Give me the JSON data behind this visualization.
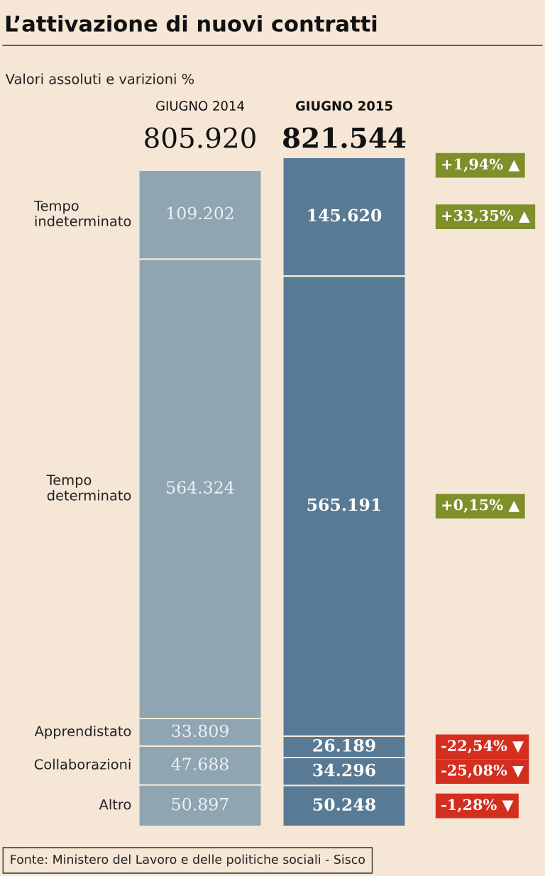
{
  "chart_data": {
    "type": "bar",
    "stacked": true,
    "title": "L’attivazione di nuovi contratti",
    "subtitle": "Valori assoluti e varizioni %",
    "categories": [
      "GIUGNO 2014",
      "GIUGNO 2015"
    ],
    "series": [
      {
        "name": "Altro",
        "colors": [
          "#8fa5b2",
          "#587a94"
        ],
        "values": [
          50897,
          50248
        ],
        "value_labels": [
          "50.897",
          "50.248"
        ]
      },
      {
        "name": "Collaborazioni",
        "colors": [
          "#8fa5b2",
          "#587a94"
        ],
        "values": [
          47688,
          34296
        ],
        "value_labels": [
          "47.688",
          "34.296"
        ]
      },
      {
        "name": "Apprendistato",
        "colors": [
          "#8fa5b2",
          "#587a94"
        ],
        "values": [
          33809,
          26189
        ],
        "value_labels": [
          "33.809",
          "26.189"
        ]
      },
      {
        "name": "Tempo\ndeterminato",
        "colors": [
          "#8fa5b2",
          "#587a94"
        ],
        "values": [
          564324,
          565191
        ],
        "value_labels": [
          "564.324",
          "565.191"
        ]
      },
      {
        "name": "Tempo\nindeterminato",
        "colors": [
          "#8fa5b2",
          "#587a94"
        ],
        "values": [
          109202,
          145620
        ],
        "value_labels": [
          "109.202",
          "145.620"
        ]
      }
    ],
    "totals": [
      "805.920",
      "821.544"
    ],
    "annotations": [
      "+1,94% ▲",
      "+33,35% ▲",
      "+0,15% ▲",
      "-22,54% ▼",
      "-25,08% ▼",
      "-1,28% ▼",
      "Fonte: Ministero del Lavoro e delle politiche sociali - Sisco"
    ],
    "legend": false
  }
}
